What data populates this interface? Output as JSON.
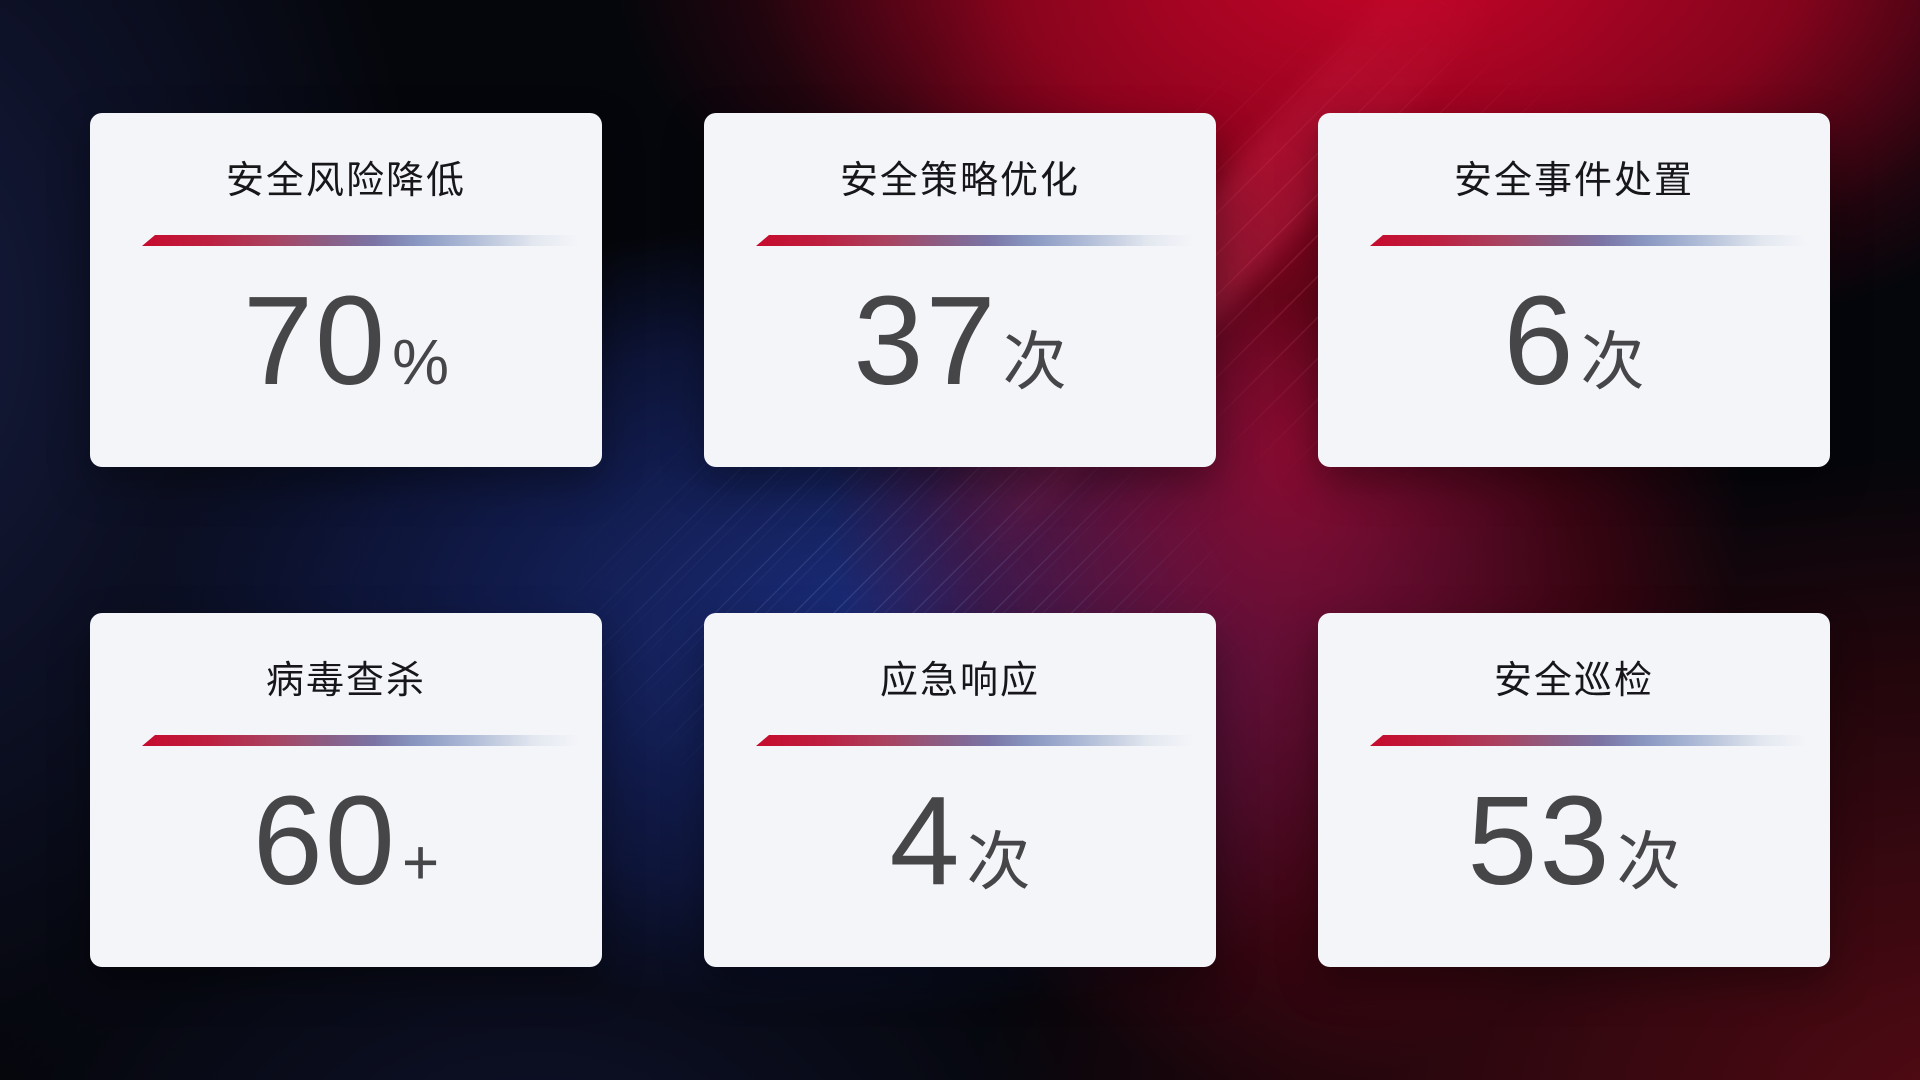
{
  "theme": {
    "card_background": "#f4f5f9",
    "title_color": "#17171a",
    "value_color": "#464649",
    "divider_red": "#c60b2e",
    "divider_blue": "#a9b6d4",
    "background_red_glow": "#a50420",
    "background_blue_glow": "#1b2d7d",
    "background_base": "#05060b"
  },
  "cards": [
    {
      "title": "安全风险降低",
      "value": "70",
      "unit": "%"
    },
    {
      "title": "安全策略优化",
      "value": "37",
      "unit": "次"
    },
    {
      "title": "安全事件处置",
      "value": "6",
      "unit": "次"
    },
    {
      "title": "病毒查杀",
      "value": "60",
      "unit": "+"
    },
    {
      "title": "应急响应",
      "value": "4",
      "unit": "次"
    },
    {
      "title": "安全巡检",
      "value": "53",
      "unit": "次"
    }
  ]
}
